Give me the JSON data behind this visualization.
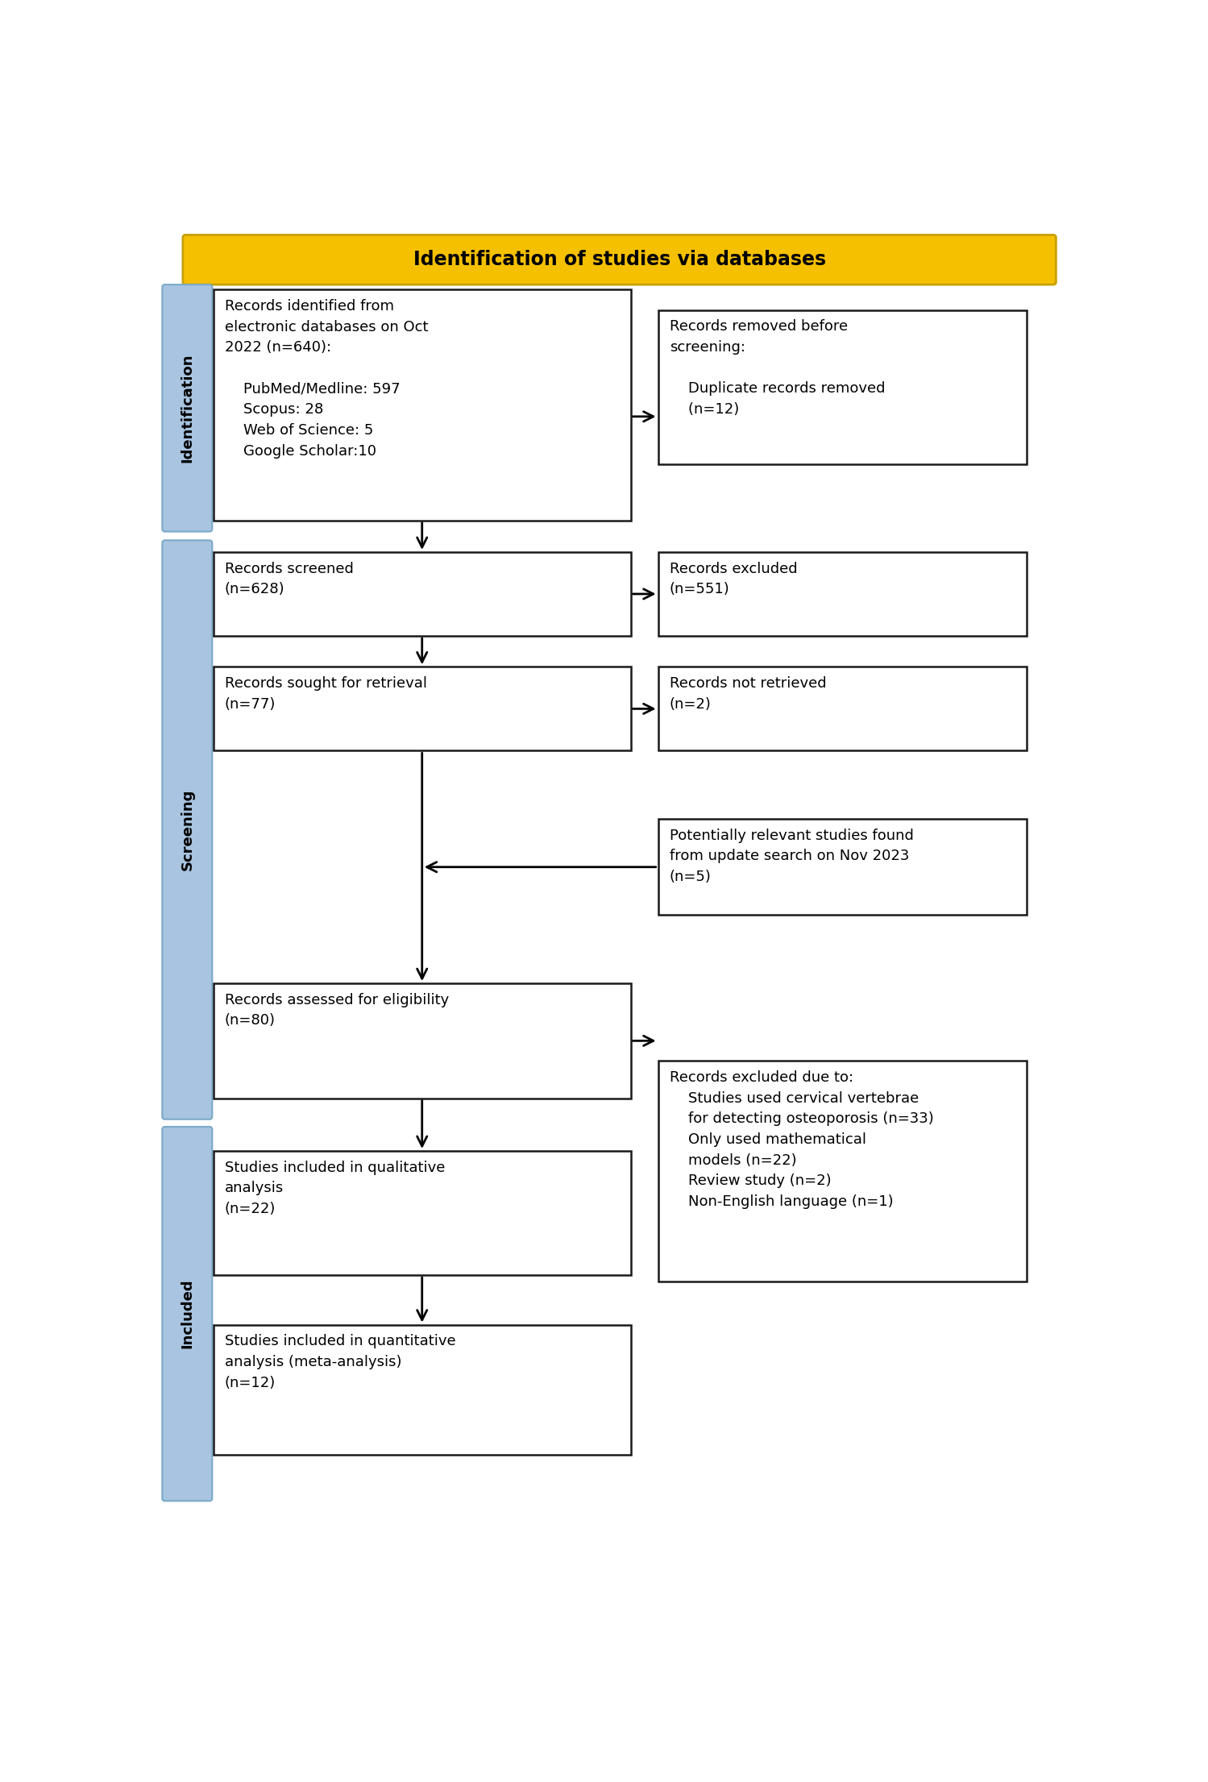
{
  "title": "Identification of studies via databases",
  "title_bg": "#F5C000",
  "title_border": "#C8A000",
  "box_border_color": "#1a1a1a",
  "box_fill_color": "#FFFFFF",
  "sidebar_fill_color": "#A8C4E0",
  "sidebar_border_color": "#7AAAC8",
  "arrow_color": "#000000",
  "texts": {
    "box1": "Records identified from\nelectronic databases on Oct\n2022 (n=640):\n\n    PubMed/Medline: 597\n    Scopus: 28\n    Web of Science: 5\n    Google Scholar:10",
    "box2": "Records removed before\nscreening:\n\n    Duplicate records removed\n    (n=12)",
    "box3": "Records screened\n(n=628)",
    "box4": "Records excluded\n(n=551)",
    "box5": "Records sought for retrieval\n(n=77)",
    "box6": "Records not retrieved\n(n=2)",
    "box7": "Potentially relevant studies found\nfrom update search on Nov 2023\n(n=5)",
    "box8": "Records assessed for eligibility\n(n=80)",
    "box9": "Records excluded due to:\n    Studies used cervical vertebrae\n    for detecting osteoporosis (n=33)\n    Only used mathematical\n    models (n=22)\n    Review study (n=2)\n    Non-English language (n=1)",
    "box10": "Studies included in qualitative\nanalysis\n(n=22)",
    "box11": "Studies included in quantitative\nanalysis (meta-analysis)\n(n=12)"
  },
  "sidebar_labels": [
    "Identification",
    "Screening",
    "Included"
  ],
  "font_size": 13,
  "title_font_size": 17,
  "sidebar_font_size": 13
}
